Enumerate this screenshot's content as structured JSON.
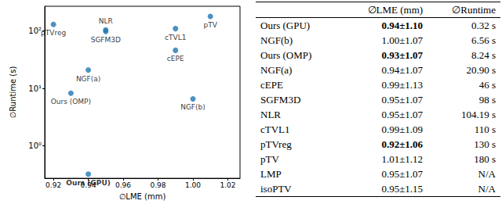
{
  "chart_data": {
    "type": "scatter",
    "x_label": "∅LME (mm)",
    "y_label": "∅Runtime (s)",
    "labels": [
      "pTVreg",
      "NLR",
      "SGFM3D",
      "cTVL1",
      "pTV",
      "cEPE",
      "NGF(a)",
      "Ours (OMP)",
      "NGF(b)",
      "Ours (GPU)"
    ],
    "x": [
      0.92,
      0.95,
      0.95,
      0.99,
      1.01,
      0.99,
      0.94,
      0.93,
      1.0,
      0.94
    ],
    "values": [
      130,
      104.19,
      98,
      110,
      180,
      46,
      20.9,
      8.24,
      6.56,
      0.32
    ],
    "color": "#1f77b4",
    "marker": "circle",
    "xlim": [
      0.915,
      1.027
    ],
    "xticks": [
      0.92,
      0.94,
      0.96,
      0.98,
      {
        "value": 1.0,
        "label": "1.00"
      },
      1.02
    ],
    "ylim": [
      0.27,
      270
    ],
    "yticks": [
      {
        "value": 1,
        "label": "10⁰"
      },
      {
        "value": 10,
        "label": "10¹"
      },
      {
        "value": 100,
        "label": "10²"
      }
    ],
    "log": "y",
    "grid": false
  },
  "table": {
    "header": [
      "",
      "∅LME (mm)",
      "∅Runtime"
    ],
    "rows": [
      [
        "Ours (GPU)",
        {
          "text": "0.94±1.10",
          "bold": true
        },
        "0.32 s"
      ],
      [
        "NGF(b)",
        "1.00±1.07",
        "6.56 s"
      ],
      [
        "Ours (OMP)",
        {
          "text": "0.93±1.07",
          "bold": true
        },
        "8.24 s"
      ],
      [
        "NGF(a)",
        "0.94±1.07",
        "20.90 s"
      ],
      [
        "cEPE",
        "0.99±1.13",
        "46 s"
      ],
      [
        "SGFM3D",
        "0.95±1.07",
        "98 s"
      ],
      [
        "NLR",
        "0.95±1.07",
        "104.19 s"
      ],
      [
        "cTVL1",
        "0.99±1.09",
        "110 s"
      ],
      [
        "pTVreg",
        {
          "text": "0.92±1.06",
          "bold": true
        },
        "130 s"
      ],
      [
        "pTV",
        "1.01±1.12",
        "180 s"
      ],
      [
        "LMP",
        "0.95±1.07",
        "N/A"
      ],
      [
        "isoPTV",
        "0.95±1.15",
        "N/A"
      ]
    ]
  }
}
